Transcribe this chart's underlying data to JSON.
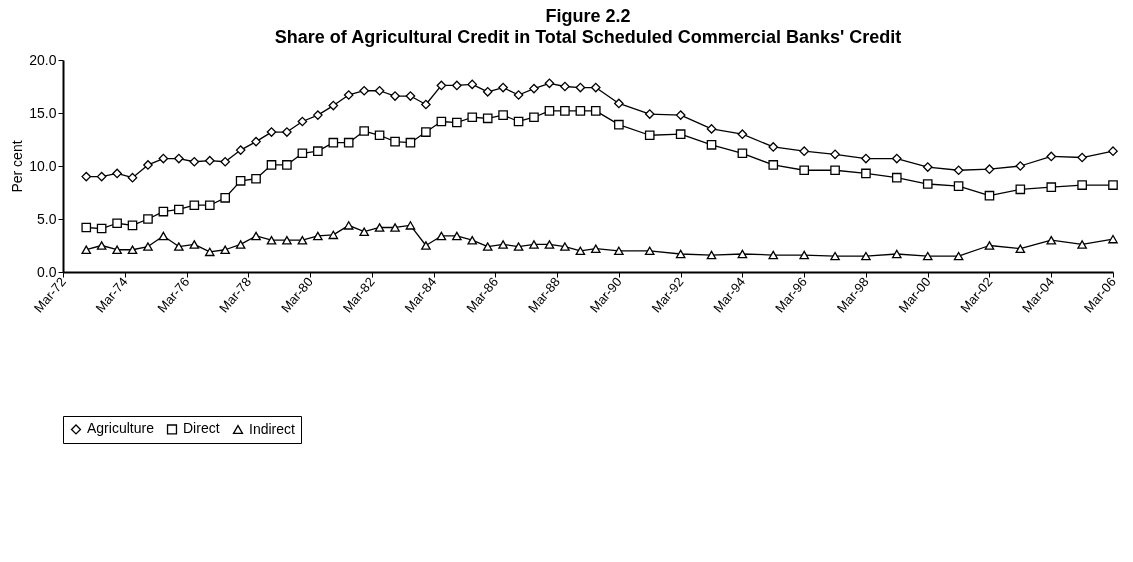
{
  "chart_data": {
    "type": "line",
    "title": "Figure 2.2",
    "subtitle": "Share of Agricultural Credit in Total Scheduled Commercial Banks' Credit",
    "ylabel": "Per cent",
    "x": [
      "1972-12",
      "1973-06",
      "1973-12",
      "1974-06",
      "1974-12",
      "1975-06",
      "1975-12",
      "1976-06",
      "1976-12",
      "1977-06",
      "1977-12",
      "1978-06",
      "1978-12",
      "1979-06",
      "1979-12",
      "1980-06",
      "1980-12",
      "1981-06",
      "1981-12",
      "1982-06",
      "1982-12",
      "1983-06",
      "1983-12",
      "1984-06",
      "1984-12",
      "1985-06",
      "1985-12",
      "1986-06",
      "1986-12",
      "1987-06",
      "1987-12",
      "1988-06",
      "1988-12",
      "1989-06",
      "1990-03",
      "1991-03",
      "1992-03",
      "1993-03",
      "1994-03",
      "1995-03",
      "1996-03",
      "1997-03",
      "1998-03",
      "1999-03",
      "2000-03",
      "2001-03",
      "2002-03",
      "2003-03",
      "2004-03",
      "2005-03",
      "2006-03"
    ],
    "series": [
      {
        "name": "Agriculture",
        "color": "#000000",
        "marker": "diamond",
        "values": [
          9.0,
          9.0,
          9.3,
          8.9,
          10.1,
          10.7,
          10.7,
          10.4,
          10.5,
          10.4,
          11.5,
          12.3,
          13.2,
          13.2,
          14.2,
          14.8,
          15.7,
          16.7,
          17.1,
          17.1,
          16.6,
          16.6,
          15.8,
          17.6,
          17.6,
          17.7,
          17.0,
          17.4,
          16.7,
          17.3,
          17.8,
          17.5,
          17.4,
          17.4,
          15.9,
          14.9,
          14.8,
          13.5,
          13.0,
          11.8,
          11.4,
          11.1,
          10.7,
          10.7,
          9.9,
          9.6,
          9.7,
          10.0,
          10.9,
          10.8,
          11.4
        ]
      },
      {
        "name": "Direct",
        "color": "#000000",
        "marker": "square",
        "values": [
          4.2,
          4.1,
          4.6,
          4.4,
          5.0,
          5.7,
          5.9,
          6.3,
          6.3,
          7.0,
          8.6,
          8.8,
          10.1,
          10.1,
          11.2,
          11.4,
          12.2,
          12.2,
          13.3,
          12.9,
          12.3,
          12.2,
          13.2,
          14.2,
          14.1,
          14.6,
          14.5,
          14.8,
          14.2,
          14.6,
          15.2,
          15.2,
          15.2,
          15.2,
          13.9,
          12.9,
          13.0,
          12.0,
          11.2,
          10.1,
          9.6,
          9.6,
          9.3,
          8.9,
          8.3,
          8.1,
          7.2,
          7.8,
          8.0,
          8.2,
          8.2
        ]
      },
      {
        "name": "Indirect",
        "color": "#000000",
        "marker": "triangle",
        "values": [
          2.1,
          2.5,
          2.1,
          2.1,
          2.4,
          3.4,
          2.4,
          2.6,
          1.9,
          2.1,
          2.6,
          3.4,
          3.0,
          3.0,
          3.0,
          3.4,
          3.5,
          4.4,
          3.8,
          4.2,
          4.2,
          4.4,
          2.5,
          3.4,
          3.4,
          3.0,
          2.4,
          2.6,
          2.4,
          2.6,
          2.6,
          2.4,
          2.0,
          2.2,
          2.0,
          2.0,
          1.7,
          1.6,
          1.7,
          1.6,
          1.6,
          1.5,
          1.5,
          1.7,
          1.5,
          1.5,
          2.5,
          2.2,
          3.0,
          2.6,
          3.1
        ]
      }
    ],
    "xlim": [
      "1972-03",
      "2006-03"
    ],
    "xticks": [
      {
        "value": "1972-03",
        "label": "Mar-72"
      },
      {
        "value": "1974-03",
        "label": "Mar-74"
      },
      {
        "value": "1976-03",
        "label": "Mar-76"
      },
      {
        "value": "1978-03",
        "label": "Mar-78"
      },
      {
        "value": "1980-03",
        "label": "Mar-80"
      },
      {
        "value": "1982-03",
        "label": "Mar-82"
      },
      {
        "value": "1984-03",
        "label": "Mar-84"
      },
      {
        "value": "1986-03",
        "label": "Mar-86"
      },
      {
        "value": "1988-03",
        "label": "Mar-88"
      },
      {
        "value": "1990-03",
        "label": "Mar-90"
      },
      {
        "value": "1992-03",
        "label": "Mar-92"
      },
      {
        "value": "1994-03",
        "label": "Mar-94"
      },
      {
        "value": "1996-03",
        "label": "Mar-96"
      },
      {
        "value": "1998-03",
        "label": "Mar-98"
      },
      {
        "value": "2000-03",
        "label": "Mar-00"
      },
      {
        "value": "2002-03",
        "label": "Mar-02"
      },
      {
        "value": "2004-03",
        "label": "Mar-04"
      },
      {
        "value": "2006-03",
        "label": "Mar-06"
      }
    ],
    "ylim": [
      0,
      20
    ],
    "yticks": [
      {
        "value": 0,
        "label": "0.0"
      },
      {
        "value": 5,
        "label": "5.0"
      },
      {
        "value": 10,
        "label": "10.0"
      },
      {
        "value": 15,
        "label": "15.0"
      },
      {
        "value": 20,
        "label": "20.0"
      }
    ],
    "grid": false,
    "legend": "bottom",
    "line_style": "solid"
  }
}
